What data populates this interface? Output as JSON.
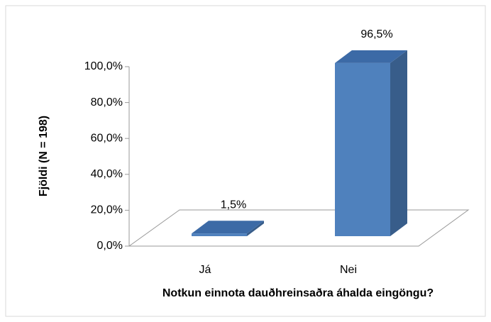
{
  "chart_data": {
    "type": "bar3d",
    "y_axis_label": "Fjöldi (N = 198)",
    "x_axis_label": "Notkun einnota dauðhreinsaðra áhalda eingöngu?",
    "categories": [
      "Já",
      "Nei"
    ],
    "values": [
      1.5,
      96.5
    ],
    "value_labels": [
      "1,5%",
      "96,5%"
    ],
    "color": "#4f81bd",
    "ylim": [
      0,
      100
    ],
    "yticks": [
      {
        "value": 0,
        "label": "0,0%"
      },
      {
        "value": 20,
        "label": "20,0%"
      },
      {
        "value": 40,
        "label": "40,0%"
      },
      {
        "value": 60,
        "label": "60,0%"
      },
      {
        "value": 80,
        "label": "80,0%"
      },
      {
        "value": 100,
        "label": "100,0%"
      }
    ],
    "grid": false
  }
}
